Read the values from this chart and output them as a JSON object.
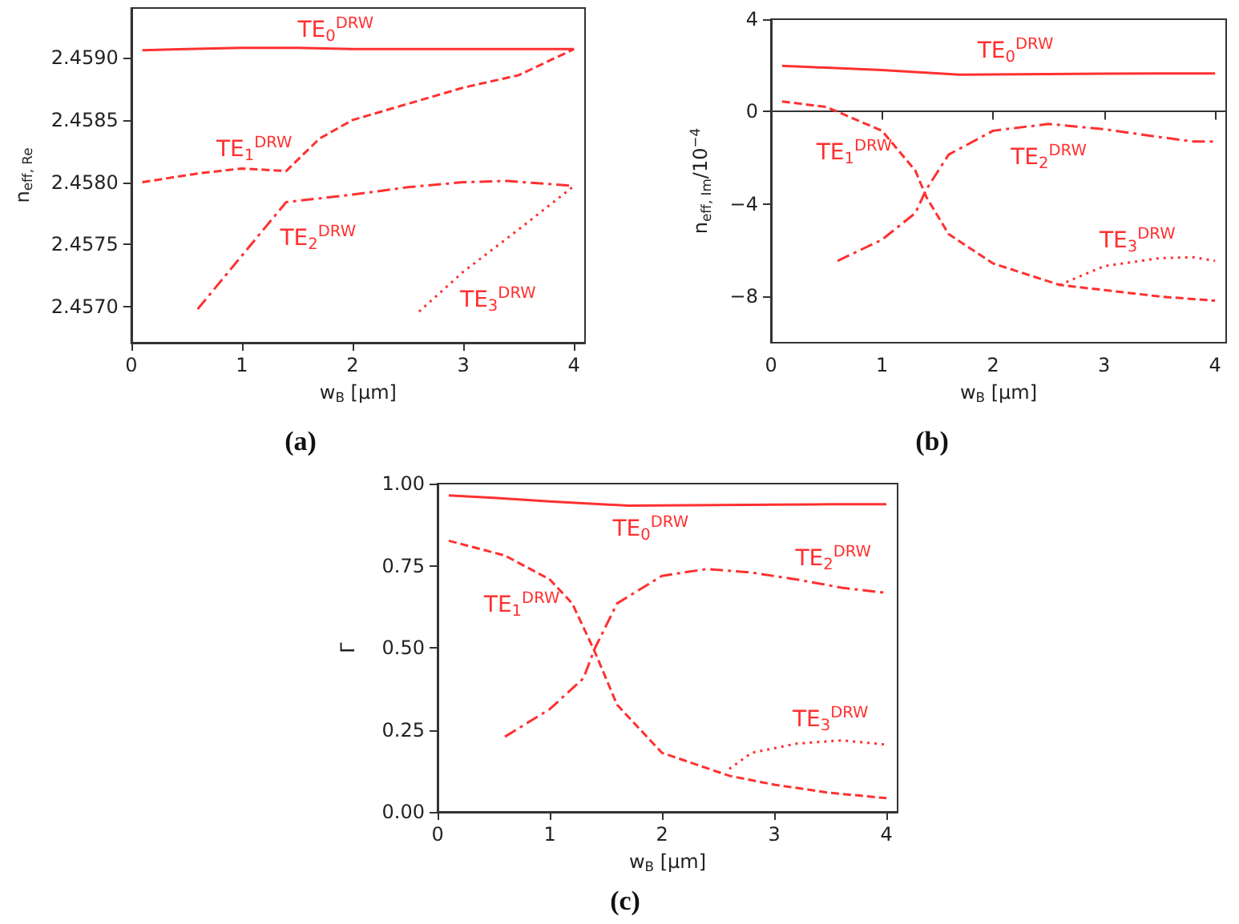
{
  "chart_data": [
    {
      "type": "line",
      "xlabel": "w$_{B}$ [μm]",
      "ylabel": "n$_{eff, Re}$",
      "xlim": [
        0,
        4.1
      ],
      "ylim": [
        2.45671,
        2.4594
      ],
      "xticks": [
        0,
        1,
        2,
        3,
        4
      ],
      "yticks": [
        {
          "value": 2.457,
          "label": "2.4570"
        },
        {
          "value": 2.4575,
          "label": "2.4575"
        },
        {
          "value": 2.458,
          "label": "2.4580"
        },
        {
          "value": 2.4585,
          "label": "2.4585"
        },
        {
          "value": 2.459,
          "label": "2.4590"
        }
      ],
      "marker": "none",
      "series": [
        {
          "name": "TE$_{0}$$^{DRW}$",
          "color": "#ff3030",
          "line_style": "solid",
          "x": [
            0.1,
            0.5,
            1.0,
            1.5,
            2.0,
            2.5,
            3.0,
            3.5,
            4.0
          ],
          "values": [
            2.45906,
            2.45907,
            2.45908,
            2.45908,
            2.45907,
            2.45907,
            2.45907,
            2.45907,
            2.45907
          ]
        },
        {
          "name": "TE$_{1}$$^{DRW}$",
          "color": "#ff3030",
          "line_style": "dashed",
          "x": [
            0.1,
            0.6,
            1.0,
            1.2,
            1.4,
            1.7,
            2.0,
            2.5,
            3.0,
            3.5,
            4.0
          ],
          "values": [
            2.458,
            2.45807,
            2.45811,
            2.4581,
            2.45809,
            2.45835,
            2.4585,
            2.45863,
            2.45876,
            2.45886,
            2.45907
          ]
        },
        {
          "name": "TE$_{2}$$^{DRW}$",
          "color": "#ff3030",
          "line_style": "dashdot",
          "x": [
            0.6,
            1.0,
            1.4,
            2.0,
            2.5,
            3.0,
            3.4,
            4.0
          ],
          "values": [
            2.45698,
            2.45741,
            2.45784,
            2.4579,
            2.45796,
            2.458,
            2.45801,
            2.45797
          ]
        },
        {
          "name": "TE$_{3}$$^{DRW}$",
          "color": "#ff3030",
          "line_style": "dotted",
          "x": [
            2.6,
            3.0,
            3.5,
            4.0
          ],
          "values": [
            2.45696,
            2.45728,
            2.45762,
            2.45797
          ]
        }
      ],
      "annotations": [
        "(a)"
      ]
    },
    {
      "type": "line",
      "xlabel": "w$_{B}$ [μm]",
      "ylabel": "n$_{eff, Im}$/10$^{−4}$",
      "xlim": [
        0,
        4.1
      ],
      "ylim": [
        -10,
        4
      ],
      "xticks": [
        0,
        1,
        2,
        3,
        4
      ],
      "yticks": [
        {
          "value": -8,
          "label": "−8"
        },
        {
          "value": -4,
          "label": "−4"
        },
        0,
        4
      ],
      "marker": "none",
      "series": [
        {
          "name": "TE$_{0}$$^{DRW}$",
          "color": "#ff3030",
          "line_style": "solid",
          "x": [
            0.1,
            0.5,
            1.0,
            1.7,
            2.5,
            3.0,
            3.5,
            4.0
          ],
          "values": [
            1.98,
            1.9,
            1.8,
            1.6,
            1.63,
            1.64,
            1.65,
            1.65
          ]
        },
        {
          "name": "TE$_{1}$$^{DRW}$",
          "color": "#ff3030",
          "line_style": "dashed",
          "x": [
            0.1,
            0.5,
            1.0,
            1.3,
            1.4,
            1.6,
            2.0,
            2.6,
            3.0,
            3.5,
            4.0
          ],
          "values": [
            0.44,
            0.2,
            -0.83,
            -2.55,
            -3.7,
            -5.3,
            -6.57,
            -7.5,
            -7.72,
            -8.0,
            -8.18
          ]
        },
        {
          "name": "TE$_{2}$$^{DRW}$",
          "color": "#ff3030",
          "line_style": "dashdot",
          "x": [
            0.6,
            1.0,
            1.3,
            1.4,
            1.6,
            2.0,
            2.5,
            3.0,
            3.5,
            3.8,
            4.0
          ],
          "values": [
            -6.46,
            -5.54,
            -4.39,
            -3.36,
            -1.86,
            -0.83,
            -0.53,
            -0.76,
            -1.1,
            -1.29,
            -1.29
          ]
        },
        {
          "name": "TE$_{3}$$^{DRW}$",
          "color": "#ff3030",
          "line_style": "dotted",
          "x": [
            2.6,
            3.0,
            3.5,
            3.8,
            4.0
          ],
          "values": [
            -7.5,
            -6.69,
            -6.34,
            -6.3,
            -6.46
          ]
        }
      ],
      "annotations": [
        "(b)"
      ]
    },
    {
      "type": "line",
      "xlabel": "w$_{B}$ [μm]",
      "ylabel": "Γ",
      "xlim": [
        0,
        4.1
      ],
      "ylim": [
        0,
        1
      ],
      "xticks": [
        0,
        1,
        2,
        3,
        4
      ],
      "yticks": [
        {
          "value": 0,
          "label": "0.00"
        },
        {
          "value": 0.25,
          "label": "0.25"
        },
        {
          "value": 0.5,
          "label": "0.50"
        },
        {
          "value": 0.75,
          "label": "0.75"
        },
        {
          "value": 1,
          "label": "1.00"
        }
      ],
      "marker": "none",
      "series": [
        {
          "name": "TE$_{0}$$^{DRW}$",
          "color": "#ff3030",
          "line_style": "solid",
          "x": [
            0.1,
            0.5,
            1.0,
            1.7,
            2.5,
            3.0,
            3.5,
            4.0
          ],
          "values": [
            0.964,
            0.957,
            0.946,
            0.933,
            0.935,
            0.936,
            0.937,
            0.937
          ]
        },
        {
          "name": "TE$_{1}$$^{DRW}$",
          "color": "#ff3030",
          "line_style": "dashed",
          "x": [
            0.1,
            0.6,
            1.0,
            1.2,
            1.4,
            1.6,
            2.0,
            2.6,
            3.0,
            3.5,
            4.0
          ],
          "values": [
            0.826,
            0.781,
            0.708,
            0.635,
            0.489,
            0.326,
            0.18,
            0.11,
            0.083,
            0.058,
            0.042
          ]
        },
        {
          "name": "TE$_{2}$$^{DRW}$",
          "color": "#ff3030",
          "line_style": "dashdot",
          "x": [
            0.6,
            1.0,
            1.3,
            1.4,
            1.6,
            2.0,
            2.4,
            2.8,
            3.2,
            3.6,
            4.0
          ],
          "values": [
            0.229,
            0.313,
            0.407,
            0.497,
            0.635,
            0.719,
            0.74,
            0.729,
            0.708,
            0.683,
            0.667
          ]
        },
        {
          "name": "TE$_{3}$$^{DRW}$",
          "color": "#ff3030",
          "line_style": "dotted",
          "x": [
            2.6,
            2.8,
            3.2,
            3.6,
            4.0
          ],
          "values": [
            0.131,
            0.18,
            0.208,
            0.218,
            0.205
          ]
        }
      ],
      "annotations": [
        "(c)"
      ]
    }
  ]
}
